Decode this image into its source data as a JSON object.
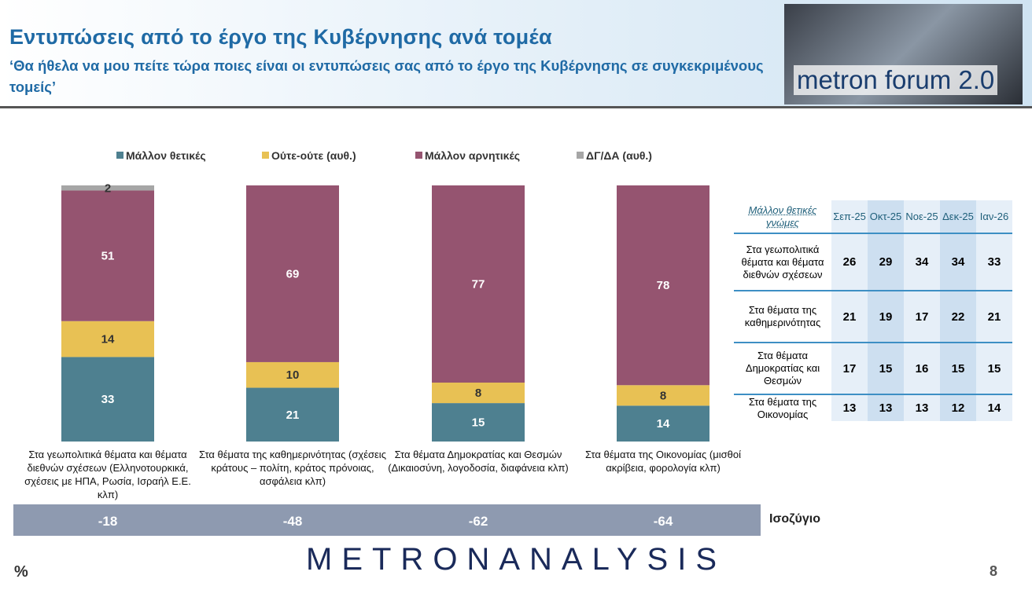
{
  "header": {
    "title": "Εντυπώσεις από το έργο της Κυβέρνησης ανά τομέα",
    "subtitle": "‘Θα ήθελα να μου πείτε τώρα ποιες είναι οι εντυπώσεις σας από το έργο της Κυβέρνησης σε συγκεκριμένους τομείς’",
    "logo": "metron forum 2.0"
  },
  "chart_data": {
    "type": "bar",
    "stacked": true,
    "categories": [
      "Στα γεωπολιτικά θέματα και θέματα διεθνών σχέσεων (Ελληνοτουρκικά, σχέσεις με ΗΠΑ, Ρωσία, Ισραήλ Ε.Ε. κλπ)",
      "Στα θέματα της καθημερινότητας (σχέσεις κράτους – πολίτη, κράτος πρόνοιας, ασφάλεια κλπ)",
      "Στα θέματα Δημοκρατίας και Θεσμών (Δικαιοσύνη, λογοδοσία, διαφάνεια κλπ)",
      "Στα θέματα της Οικονομίας (μισθοί ακρίβεια, φορολογία κλπ)"
    ],
    "series": [
      {
        "name": "Μάλλον θετικές",
        "color": "#4e8090",
        "values": [
          33,
          21,
          15,
          14
        ]
      },
      {
        "name": "Ούτε-ούτε  (αυθ.)",
        "color": "#e8c154",
        "values": [
          14,
          10,
          8,
          8
        ]
      },
      {
        "name": "Μάλλον αρνητικές",
        "color": "#955470",
        "values": [
          51,
          69,
          77,
          78
        ]
      },
      {
        "name": "ΔΓ/ΔΑ (αυθ.)",
        "color": "#a6a6a6",
        "values": [
          2,
          null,
          null,
          null
        ]
      }
    ],
    "ylim": [
      0,
      100
    ]
  },
  "balance": {
    "label": "Ισοζύγιο",
    "values": [
      -18,
      -48,
      -62,
      -64
    ]
  },
  "table": {
    "header": [
      "Μάλλον θετικές γνώμες",
      "Σεπ-25",
      "Οκτ-25",
      "Νοε-25",
      "Δεκ-25",
      "Ιαν-26"
    ],
    "rows": [
      [
        "Στα γεωπολιτικά θέματα και θέματα διεθνών σχέσεων",
        26,
        29,
        34,
        34,
        33
      ],
      [
        "Στα θέματα της καθημερινότητας",
        21,
        19,
        17,
        22,
        21
      ],
      [
        "Στα θέματα Δημοκρατίας και Θεσμών",
        17,
        15,
        16,
        15,
        15
      ],
      [
        "Στα θέματα της Οικονομίας",
        13,
        13,
        13,
        12,
        14
      ]
    ]
  },
  "footer": {
    "brand": "METRONANALYSIS",
    "unit": "%",
    "page": "8"
  }
}
